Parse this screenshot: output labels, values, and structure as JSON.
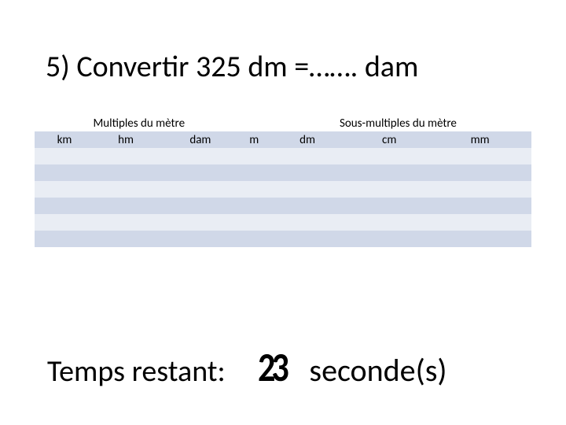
{
  "slide": {
    "title": "5) Convertir 325 dm =……. dam",
    "timer_label": "Temps restant:",
    "timer_count": "23",
    "timer_unit": "seconde(s)"
  },
  "conversion_table": {
    "type": "table",
    "group_headers": {
      "multiples": {
        "label": "Multiples du mètre",
        "span": 3
      },
      "base": {
        "label": "",
        "span": 1
      },
      "submult": {
        "label": "Sous-multiples du mètre",
        "span": 3
      }
    },
    "columns": [
      "km",
      "hm",
      "dam",
      "m",
      "dm",
      "cm",
      "mm"
    ],
    "num_data_rows": 6,
    "colors": {
      "group_header_bg": "#ffffff",
      "unit_header_bg": "#d0d8e8",
      "band_a": "#d0d8e8",
      "band_b": "#e9edf4",
      "text": "#000000"
    },
    "fontsize_headers": 15,
    "column_count": 7
  }
}
